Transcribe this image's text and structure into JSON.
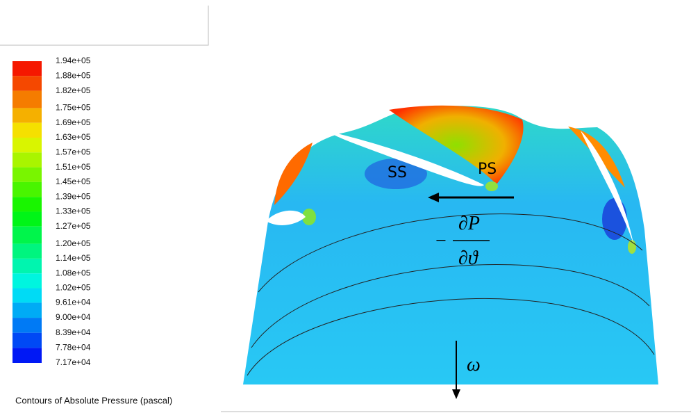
{
  "chart_data": {
    "type": "contour",
    "title": "Contours of Absolute Pressure (pascal)",
    "colorbar_ticks": [
      {
        "value": 194000,
        "label": "1.94e+05"
      },
      {
        "value": 188000,
        "label": "1.88e+05"
      },
      {
        "value": 182000,
        "label": "1.82e+05"
      },
      {
        "value": 175000,
        "label": "1.75e+05"
      },
      {
        "value": 169000,
        "label": "1.69e+05"
      },
      {
        "value": 163000,
        "label": "1.63e+05"
      },
      {
        "value": 157000,
        "label": "1.57e+05"
      },
      {
        "value": 151000,
        "label": "1.51e+05"
      },
      {
        "value": 145000,
        "label": "1.45e+05"
      },
      {
        "value": 139000,
        "label": "1.39e+05"
      },
      {
        "value": 133000,
        "label": "1.33e+05"
      },
      {
        "value": 127000,
        "label": "1.27e+05"
      },
      {
        "value": 120000,
        "label": "1.20e+05"
      },
      {
        "value": 114000,
        "label": "1.14e+05"
      },
      {
        "value": 108000,
        "label": "1.08e+05"
      },
      {
        "value": 102000,
        "label": "1.02e+05"
      },
      {
        "value": 96100,
        "label": "9.61e+04"
      },
      {
        "value": 90000,
        "label": "9.00e+04"
      },
      {
        "value": 83900,
        "label": "8.39e+04"
      },
      {
        "value": 77800,
        "label": "7.78e+04"
      },
      {
        "value": 71700,
        "label": "7.17e+04"
      }
    ],
    "annotations": {
      "suction_side": "SS",
      "pressure_side": "PS",
      "numerator": "∂P",
      "denominator": "∂ϑ",
      "sign": "−",
      "rotation": "ω"
    }
  }
}
